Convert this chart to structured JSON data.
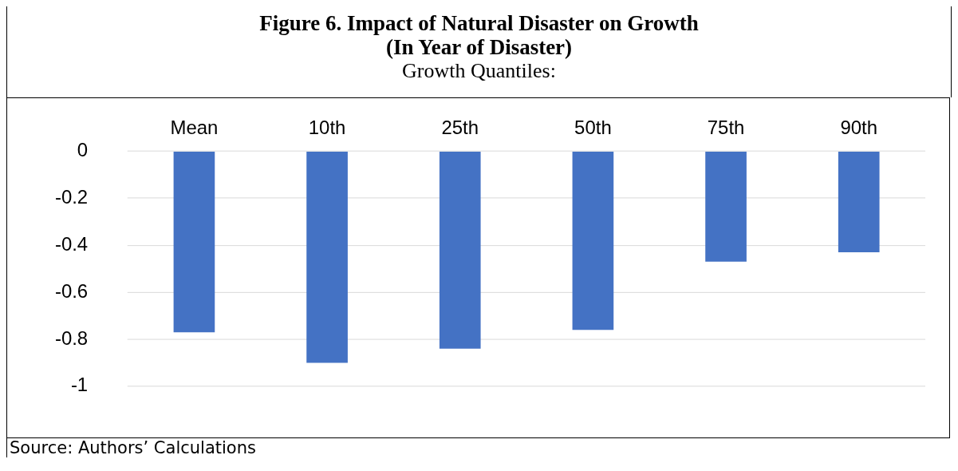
{
  "chart_data": {
    "type": "bar",
    "title": "Figure 6. Impact of Natural Disaster on Growth",
    "subtitle": "(In Year of Disaster)",
    "xlabel": "Growth Quantiles:",
    "categories": [
      "Mean",
      "10th",
      "25th",
      "50th",
      "75th",
      "90th"
    ],
    "values": [
      -0.77,
      -0.9,
      -0.84,
      -0.76,
      -0.47,
      -0.43
    ],
    "color": "#4472c4",
    "ylim": [
      -1,
      0
    ],
    "yticks": [
      {
        "value": -1,
        "label": "-1"
      },
      {
        "value": -0.8,
        "label": "-0.8"
      },
      {
        "value": -0.6,
        "label": "-0.6"
      },
      {
        "value": -0.4,
        "label": "-0.4"
      },
      {
        "value": -0.2,
        "label": "-0.2"
      },
      {
        "value": 0,
        "label": "0"
      }
    ],
    "grid": "y",
    "legend": false,
    "annotations": [
      "Source: Authors’ Calculations"
    ]
  }
}
